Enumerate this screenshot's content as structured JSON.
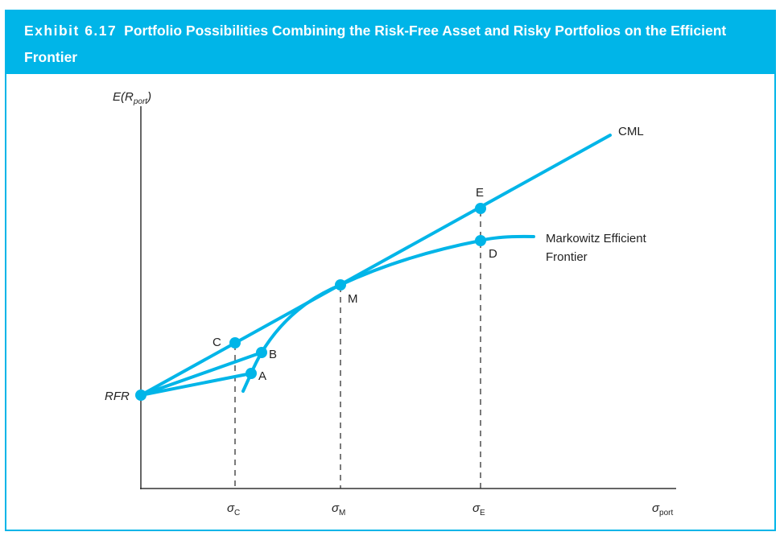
{
  "header": {
    "exhibit_number": "Exhibit 6.17",
    "title": "Portfolio Possibilities Combining the Risk-Free Asset and Risky Portfolios on the Efficient Frontier"
  },
  "diagram": {
    "y_axis_label": {
      "main": "E(R",
      "sub": "port",
      "close": ")"
    },
    "x_axis_label": {
      "main": "σ",
      "sub": "port"
    },
    "x_ticks": [
      {
        "main": "σ",
        "sub": "C"
      },
      {
        "main": "σ",
        "sub": "M"
      },
      {
        "main": "σ",
        "sub": "E"
      }
    ],
    "points": {
      "rfr": "RFR",
      "a": "A",
      "b": "B",
      "c": "C",
      "m": "M",
      "d": "D",
      "e": "E"
    },
    "lines": {
      "cml": "CML",
      "frontier_line1": "Markowitz Efficient",
      "frontier_line2": "Frontier"
    },
    "colors": {
      "accent": "#00b5e8",
      "axis": "#333333"
    }
  }
}
